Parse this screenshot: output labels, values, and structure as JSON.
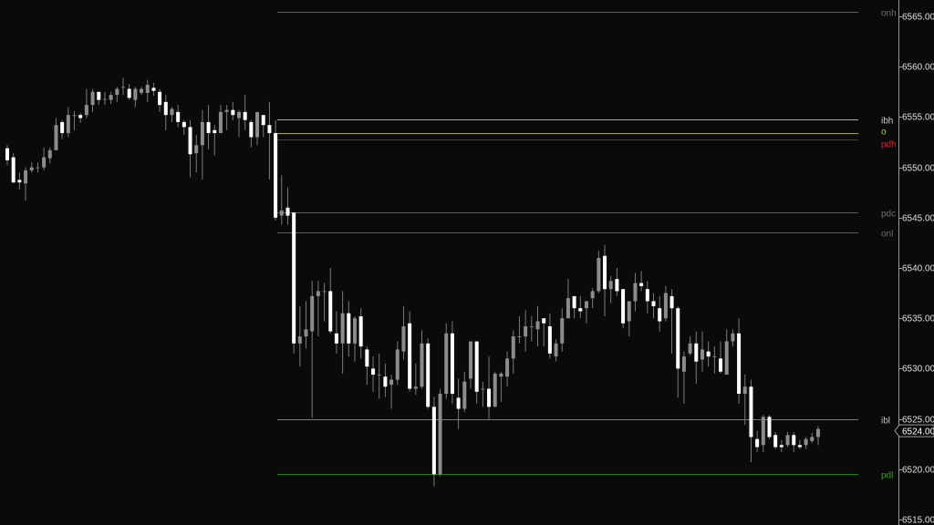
{
  "chart_data": {
    "type": "candlestick",
    "ylim": [
      6515,
      6565
    ],
    "yticks": [
      "6515.00",
      "6520.00",
      "6525.00",
      "6530.00",
      "6535.00",
      "6540.00",
      "6545.00",
      "6550.00",
      "6555.00",
      "6560.00",
      "6565.00"
    ],
    "last_price": "6524.00",
    "last_price_value": 6524.0,
    "colors": {
      "background": "#0a0a0a",
      "up_body": "#8c8c8c",
      "down_body": "#ffffff",
      "wick": "#7a7a7a",
      "axis": "#9a9a9a"
    },
    "levels": [
      {
        "label": "onh",
        "price": 6565.45,
        "color": "#5e5e5e",
        "label_color": "#6e6e6e"
      },
      {
        "label": "ibh",
        "price": 6554.75,
        "color": "#a8a8a8",
        "label_color": "#c8c8c8"
      },
      {
        "label": "o",
        "price": 6553.4,
        "color": "#a8a83a",
        "label_color": "#c8c840"
      },
      {
        "label": "pdh",
        "price": 6552.75,
        "color": "#8a1f2a",
        "label_color": "#c0283a"
      },
      {
        "label": "pdc",
        "price": 6545.5,
        "color": "#5e5e5e",
        "label_color": "#6e6e6e"
      },
      {
        "label": "onl",
        "price": 6543.5,
        "color": "#5e5e5e",
        "label_color": "#6e6e6e"
      },
      {
        "label": "ibl",
        "price": 6525.0,
        "color": "#7a7a7a",
        "label_color": "#c0c0c0"
      },
      {
        "label": "pdl",
        "price": 6519.5,
        "color": "#2a7a1a",
        "label_color": "#3a9a20"
      }
    ],
    "ohlc_columns": [
      "open",
      "high",
      "low",
      "close"
    ],
    "candles": [
      [
        6551.9,
        6552.2,
        6550.2,
        6550.7
      ],
      [
        6551.0,
        6551.4,
        6548.4,
        6548.5
      ],
      [
        6548.75,
        6549.5,
        6547.8,
        6548.5
      ],
      [
        6548.4,
        6550.0,
        6546.7,
        6549.7
      ],
      [
        6549.7,
        6550.5,
        6549.5,
        6550.0
      ],
      [
        6550.0,
        6550.5,
        6549.5,
        6550.0
      ],
      [
        6550.0,
        6552.0,
        6549.7,
        6551.0
      ],
      [
        6550.9,
        6552.0,
        6550.4,
        6551.7
      ],
      [
        6551.7,
        6554.9,
        6551.7,
        6554.2
      ],
      [
        6554.5,
        6554.7,
        6552.8,
        6553.4
      ],
      [
        6553.4,
        6556.0,
        6553.0,
        6555.2
      ],
      [
        6555.2,
        6555.6,
        6553.7,
        6555.2
      ],
      [
        6555.2,
        6555.4,
        6554.4,
        6554.9
      ],
      [
        6555.2,
        6557.8,
        6554.9,
        6556.2
      ],
      [
        6556.2,
        6557.8,
        6555.5,
        6557.5
      ],
      [
        6557.5,
        6557.5,
        6556.2,
        6556.7
      ],
      [
        6556.8,
        6557.5,
        6556.2,
        6556.8
      ],
      [
        6556.7,
        6557.5,
        6556.3,
        6557.2
      ],
      [
        6557.2,
        6558.0,
        6556.5,
        6557.8
      ],
      [
        6558.0,
        6558.9,
        6557.2,
        6558.0
      ],
      [
        6557.8,
        6558.3,
        6556.7,
        6556.9
      ],
      [
        6556.7,
        6558.0,
        6556.0,
        6557.8
      ],
      [
        6557.4,
        6558.0,
        6557.2,
        6557.8
      ],
      [
        6557.4,
        6558.7,
        6556.5,
        6558.2
      ],
      [
        6557.9,
        6558.4,
        6557.1,
        6557.6
      ],
      [
        6557.5,
        6557.8,
        6555.5,
        6556.2
      ],
      [
        6556.5,
        6557.2,
        6553.7,
        6555.2
      ],
      [
        6555.2,
        6556.0,
        6554.5,
        6555.8
      ],
      [
        6555.5,
        6556.2,
        6554.0,
        6554.5
      ],
      [
        6554.5,
        6554.7,
        6553.2,
        6554.0
      ],
      [
        6554.0,
        6554.7,
        6549.0,
        6551.3
      ],
      [
        6551.4,
        6553.2,
        6549.5,
        6552.2
      ],
      [
        6552.2,
        6555.7,
        6548.8,
        6554.5
      ],
      [
        6554.5,
        6556.2,
        6551.8,
        6553.4
      ],
      [
        6553.7,
        6554.2,
        6551.2,
        6553.4
      ],
      [
        6553.4,
        6556.2,
        6553.4,
        6555.5
      ],
      [
        6555.5,
        6556.2,
        6553.7,
        6555.7
      ],
      [
        6555.7,
        6556.5,
        6554.7,
        6555.2
      ],
      [
        6554.9,
        6555.7,
        6553.0,
        6555.5
      ],
      [
        6555.5,
        6557.2,
        6553.7,
        6554.7
      ],
      [
        6554.5,
        6554.7,
        6552.0,
        6553.0
      ],
      [
        6553.0,
        6555.5,
        6552.2,
        6555.5
      ],
      [
        6555.2,
        6555.2,
        6553.0,
        6554.2
      ],
      [
        6554.2,
        6556.5,
        6548.8,
        6553.4
      ],
      [
        6553.4,
        6554.7,
        6544.7,
        6545.0
      ],
      [
        6545.2,
        6549.2,
        6544.3,
        6545.7
      ],
      [
        6546.0,
        6548.0,
        6544.3,
        6545.2
      ],
      [
        6545.5,
        6545.5,
        6531.5,
        6532.5
      ],
      [
        6532.5,
        6536.2,
        6530.2,
        6533.2
      ],
      [
        6533.2,
        6536.7,
        6532.0,
        6533.9
      ],
      [
        6533.7,
        6538.7,
        6525.1,
        6537.2
      ],
      [
        6537.2,
        6538.7,
        6533.2,
        6537.7
      ],
      [
        6537.7,
        6538.5,
        6534.7,
        6537.7
      ],
      [
        6537.7,
        6540.0,
        6533.5,
        6533.7
      ],
      [
        6533.5,
        6535.7,
        6531.5,
        6532.5
      ],
      [
        6532.5,
        6537.7,
        6529.5,
        6535.5
      ],
      [
        6535.5,
        6536.7,
        6531.2,
        6532.5
      ],
      [
        6532.5,
        6535.2,
        6530.7,
        6535.0
      ],
      [
        6535.2,
        6536.0,
        6531.0,
        6532.2
      ],
      [
        6531.9,
        6532.2,
        6528.4,
        6530.2
      ],
      [
        6530.0,
        6531.2,
        6527.7,
        6529.4
      ],
      [
        6529.4,
        6531.5,
        6527.0,
        6529.4
      ],
      [
        6529.2,
        6530.5,
        6527.2,
        6528.2
      ],
      [
        6528.4,
        6529.4,
        6526.0,
        6528.9
      ],
      [
        6528.9,
        6532.7,
        6528.4,
        6531.9
      ],
      [
        6531.7,
        6536.2,
        6530.9,
        6534.2
      ],
      [
        6534.5,
        6535.7,
        6527.7,
        6528.0
      ],
      [
        6528.0,
        6530.5,
        6527.4,
        6528.2
      ],
      [
        6528.2,
        6533.8,
        6528.0,
        6532.5
      ],
      [
        6532.5,
        6533.0,
        6526.0,
        6526.2
      ],
      [
        6526.2,
        6527.2,
        6518.3,
        6519.5
      ],
      [
        6519.5,
        6528.0,
        6519.3,
        6527.5
      ],
      [
        6527.5,
        6534.5,
        6527.0,
        6533.5
      ],
      [
        6533.5,
        6534.7,
        6526.5,
        6527.5
      ],
      [
        6527.1,
        6529.0,
        6524.0,
        6526.0
      ],
      [
        6526.0,
        6529.7,
        6525.7,
        6528.7
      ],
      [
        6529.0,
        6532.7,
        6528.0,
        6532.7
      ],
      [
        6532.7,
        6532.7,
        6526.5,
        6527.7
      ],
      [
        6528.0,
        6528.7,
        6526.2,
        6528.0
      ],
      [
        6528.0,
        6531.2,
        6525.0,
        6526.2
      ],
      [
        6526.2,
        6529.7,
        6526.2,
        6529.5
      ],
      [
        6529.2,
        6529.7,
        6526.7,
        6529.5
      ],
      [
        6529.2,
        6531.7,
        6528.2,
        6531.0
      ],
      [
        6531.0,
        6533.8,
        6529.5,
        6533.2
      ],
      [
        6533.2,
        6535.2,
        6532.5,
        6533.2
      ],
      [
        6533.2,
        6535.8,
        6531.7,
        6534.2
      ],
      [
        6534.2,
        6535.2,
        6532.7,
        6534.2
      ],
      [
        6533.9,
        6536.2,
        6532.2,
        6534.7
      ],
      [
        6535.0,
        6535.0,
        6532.2,
        6534.5
      ],
      [
        6534.2,
        6535.5,
        6531.0,
        6531.5
      ],
      [
        6531.2,
        6532.9,
        6530.7,
        6532.5
      ],
      [
        6532.5,
        6536.0,
        6531.7,
        6535.0
      ],
      [
        6535.0,
        6538.9,
        6535.0,
        6537.0
      ],
      [
        6537.2,
        6537.2,
        6535.0,
        6536.0
      ],
      [
        6536.0,
        6537.2,
        6535.0,
        6535.7
      ],
      [
        6536.0,
        6536.7,
        6534.5,
        6536.7
      ],
      [
        6537.0,
        6538.0,
        6536.0,
        6537.7
      ],
      [
        6537.7,
        6541.7,
        6537.5,
        6541.0
      ],
      [
        6541.2,
        6542.3,
        6535.2,
        6537.9
      ],
      [
        6537.9,
        6539.2,
        6536.5,
        6538.7
      ],
      [
        6538.9,
        6540.0,
        6537.2,
        6537.7
      ],
      [
        6537.9,
        6537.9,
        6534.0,
        6534.5
      ],
      [
        6534.7,
        6536.7,
        6533.2,
        6536.7
      ],
      [
        6536.7,
        6539.5,
        6535.7,
        6538.5
      ],
      [
        6538.5,
        6539.7,
        6537.7,
        6538.2
      ],
      [
        6537.9,
        6538.7,
        6535.5,
        6536.7
      ],
      [
        6536.7,
        6537.5,
        6535.0,
        6536.2
      ],
      [
        6536.0,
        6537.2,
        6533.7,
        6534.7
      ],
      [
        6535.0,
        6538.2,
        6534.7,
        6537.5
      ],
      [
        6537.2,
        6537.9,
        6531.5,
        6536.0
      ],
      [
        6536.0,
        6536.2,
        6527.1,
        6530.0
      ],
      [
        6529.7,
        6531.7,
        6526.5,
        6531.2
      ],
      [
        6531.5,
        6533.2,
        6531.3,
        6532.5
      ],
      [
        6532.5,
        6533.7,
        6528.5,
        6530.7
      ],
      [
        6530.9,
        6533.7,
        6529.7,
        6531.9
      ],
      [
        6531.7,
        6532.7,
        6530.2,
        6531.2
      ],
      [
        6531.2,
        6532.2,
        6529.5,
        6531.2
      ],
      [
        6531.0,
        6532.7,
        6529.5,
        6529.7
      ],
      [
        6529.4,
        6533.9,
        6529.4,
        6532.7
      ],
      [
        6532.7,
        6533.9,
        6532.2,
        6533.5
      ],
      [
        6533.5,
        6535.0,
        6526.5,
        6527.5
      ],
      [
        6527.5,
        6529.4,
        6524.4,
        6528.2
      ],
      [
        6528.2,
        6528.9,
        6520.7,
        6523.2
      ],
      [
        6523.0,
        6523.8,
        6521.7,
        6522.2
      ],
      [
        6522.4,
        6525.4,
        6521.7,
        6525.2
      ],
      [
        6525.2,
        6525.4,
        6523.0,
        6523.2
      ],
      [
        6523.4,
        6523.7,
        6522.0,
        6522.2
      ],
      [
        6522.4,
        6522.9,
        6521.7,
        6522.2
      ],
      [
        6522.4,
        6523.7,
        6522.2,
        6523.4
      ],
      [
        6523.4,
        6523.7,
        6521.7,
        6522.4
      ],
      [
        6522.4,
        6522.9,
        6522.0,
        6522.2
      ],
      [
        6522.4,
        6523.2,
        6522.0,
        6523.0
      ],
      [
        6522.8,
        6523.6,
        6522.6,
        6523.2
      ],
      [
        6523.2,
        6524.3,
        6522.4,
        6524.0
      ]
    ]
  }
}
